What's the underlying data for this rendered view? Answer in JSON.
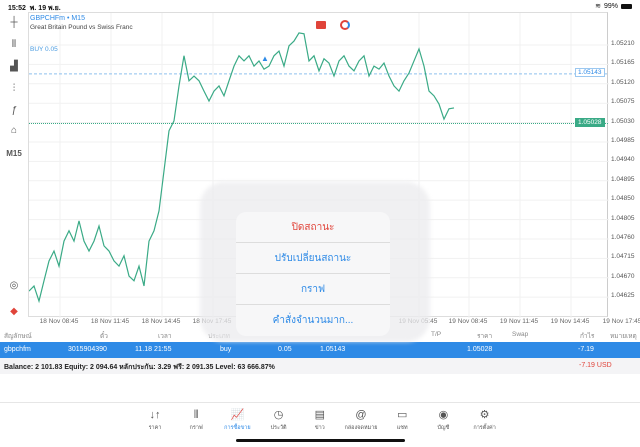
{
  "status": {
    "time": "15:52",
    "date": "พ. 19 พ.ย.",
    "wifi_icon": "wifi-icon",
    "battery": "99%"
  },
  "chart": {
    "symbol": "GBPCHFm • M15",
    "description": "Great Britain Pound vs Swiss Franc",
    "timeframe": "M15",
    "buy_label": "BUY 0.05",
    "line_color": "#3aaa86",
    "accent": "#2e8ae6"
  },
  "chart_data": {
    "type": "line",
    "series": [
      {
        "values": [
          1.04639,
          1.04651,
          1.04616,
          1.04663,
          1.04709,
          1.04732,
          1.04697,
          1.04755,
          1.04779,
          1.04755,
          1.04802,
          1.04755,
          1.04732,
          1.04755,
          1.0479,
          1.04744,
          1.04732,
          1.04709,
          1.04697,
          1.04721,
          1.04674,
          1.04663,
          1.04697,
          1.04651,
          1.04755,
          1.04779,
          1.04825,
          1.04918,
          1.05011,
          1.05034,
          1.05115,
          1.05185,
          1.05127,
          1.05138,
          1.05127,
          1.05103,
          1.0508,
          1.05103,
          1.05115,
          1.05092,
          1.05127,
          1.05161,
          1.05185,
          1.05173,
          1.05185,
          1.05161,
          1.05173,
          1.05154,
          1.05161,
          1.05185,
          1.05196,
          1.05161,
          1.05208,
          1.05219,
          1.05238,
          1.05236,
          1.05173,
          1.05185,
          1.0515,
          1.05178,
          1.05168,
          1.05138,
          1.05173,
          1.05185,
          1.05161,
          1.0515,
          1.05173,
          1.05185,
          1.05138,
          1.05161,
          1.05154,
          1.05168,
          1.05138,
          1.05115,
          1.05103,
          1.05127,
          1.05145,
          1.05173,
          1.05201,
          1.05161,
          1.05103,
          1.05092,
          1.05073,
          1.05038,
          1.05062,
          1.05064
        ]
      }
    ],
    "yticks": [
      "1.05210",
      "1.05165",
      "1.05120",
      "1.05075",
      "1.05030",
      "1.04985",
      "1.04940",
      "1.04895",
      "1.04850",
      "1.04805",
      "1.04760",
      "1.04715",
      "1.04670",
      "1.04625"
    ],
    "ylim": [
      1.04625,
      1.0521
    ],
    "xticks": [
      "18 Nov 08:45",
      "18 Nov 11:45",
      "18 Nov 14:45",
      "18 Nov 17:45",
      "19 Nov 05:45",
      "19 Nov 08:45",
      "19 Nov 11:45",
      "19 Nov 14:45",
      "19 Nov 17:45"
    ],
    "open_price": "1.05143",
    "current_price": "1.05028"
  },
  "table": {
    "headers": [
      "สัญลักษณ์",
      "ตั๋ว",
      "เวลา",
      "ประเภท",
      "T/P",
      "ราคา",
      "Swap",
      "กำไร",
      "หมายเหตุ"
    ],
    "row": {
      "symbol": "gbpchfm",
      "ticket": "3015904390",
      "time": "11.18 21:55",
      "type": "buy",
      "volume": "0.05",
      "price_open": "1.05143",
      "price": "1.05028",
      "profit": "-7.19"
    },
    "balance": "Balance: 2 101.83 Equity: 2 094.64 หลักประกัน: 3.29 ฟรี: 2 091.35 Level: 63 666.87%",
    "total": "-7.19  USD"
  },
  "popup": {
    "items": [
      "ปิดสถานะ",
      "ปรับเปลี่ยนสถานะ",
      "กราฟ",
      "คำสั่งจำนวนมาก..."
    ]
  },
  "tabs": [
    {
      "label": "ราคา",
      "icon": "↓↑"
    },
    {
      "label": "กราฟ",
      "icon": "⫴"
    },
    {
      "label": "การซื้อขาย",
      "icon": "📈"
    },
    {
      "label": "ประวัติ",
      "icon": "◷"
    },
    {
      "label": "ข่าว",
      "icon": "▤"
    },
    {
      "label": "กล่องจดหมาย",
      "icon": "@"
    },
    {
      "label": "แชท",
      "icon": "▭"
    },
    {
      "label": "บัญชี",
      "icon": "◉"
    },
    {
      "label": "การตั้งค่า",
      "icon": "⚙"
    }
  ]
}
